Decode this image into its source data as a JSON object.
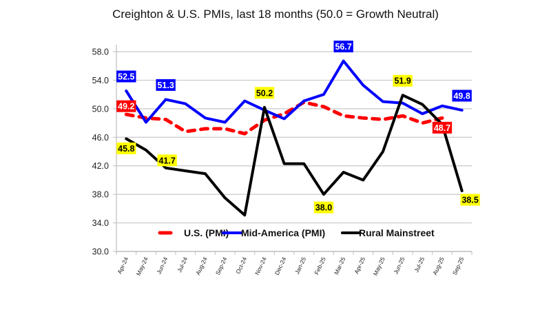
{
  "chart_data": {
    "type": "line",
    "title": "Creighton & U.S. PMIs, last 18 months (50.0 = Growth Neutral)",
    "xlabel": "",
    "ylabel": "",
    "ylim": [
      30,
      58
    ],
    "yticks": [
      30,
      34,
      38,
      42,
      46,
      50,
      54,
      58
    ],
    "ytick_labels": [
      "30.0",
      "34.0",
      "38.0",
      "42.0",
      "46.0",
      "50.0",
      "54.0",
      "58.0"
    ],
    "grid": true,
    "legend_position": "bottom-inside",
    "categories": [
      "Apr-24",
      "May-24",
      "Jun-24",
      "Jul-24",
      "Aug-24",
      "Sep-24",
      "Oct-24",
      "Nov-24",
      "Dec-24",
      "Jan-25",
      "Feb-25",
      "Mar-25",
      "Apr-25",
      "May-25",
      "Jun-25",
      "Jul-25",
      "Aug-25",
      "Sep-25"
    ],
    "series": [
      {
        "name": "U.S. (PMI)",
        "color": "#FF0000",
        "style": "dashed",
        "values": [
          49.2,
          48.7,
          48.5,
          46.8,
          47.2,
          47.2,
          46.5,
          48.4,
          49.3,
          50.9,
          50.3,
          49.0,
          48.7,
          48.5,
          49.0,
          48.0,
          48.7,
          null
        ],
        "labels": [
          {
            "index": 0,
            "text": "49.2",
            "position": "left"
          },
          {
            "index": 16,
            "text": "48.7",
            "position": "below"
          }
        ],
        "label_bg": "#FF0000",
        "label_color": "#FFFFFF"
      },
      {
        "name": "Mid-America (PMI)",
        "color": "#0000FF",
        "style": "solid",
        "values": [
          52.5,
          48.1,
          51.3,
          50.7,
          48.7,
          48.1,
          51.1,
          49.8,
          48.6,
          51.1,
          52.0,
          56.7,
          53.3,
          51.0,
          50.8,
          49.3,
          50.4,
          49.8
        ],
        "labels": [
          {
            "index": 0,
            "text": "52.5",
            "position": "above"
          },
          {
            "index": 2,
            "text": "51.3",
            "position": "above"
          },
          {
            "index": 11,
            "text": "56.7",
            "position": "above"
          },
          {
            "index": 17,
            "text": "49.8",
            "position": "above"
          }
        ],
        "label_bg": "#0000FF",
        "label_color": "#FFFFFF"
      },
      {
        "name": "Rural Mainstreet",
        "color": "#000000",
        "style": "solid",
        "values": [
          45.8,
          44.2,
          41.7,
          41.3,
          40.9,
          37.5,
          35.1,
          50.2,
          42.3,
          42.3,
          38.0,
          41.1,
          40.0,
          44.0,
          51.9,
          50.6,
          47.8,
          38.5
        ],
        "labels": [
          {
            "index": 0,
            "text": "45.8",
            "position": "below"
          },
          {
            "index": 2,
            "text": "41.7",
            "position": "above"
          },
          {
            "index": 7,
            "text": "50.2",
            "position": "above"
          },
          {
            "index": 10,
            "text": "38.0",
            "position": "below"
          },
          {
            "index": 14,
            "text": "51.9",
            "position": "above"
          },
          {
            "index": 17,
            "text": "38.5",
            "position": "below"
          }
        ],
        "label_bg": "#FFFF00",
        "label_color": "#000000"
      }
    ]
  }
}
